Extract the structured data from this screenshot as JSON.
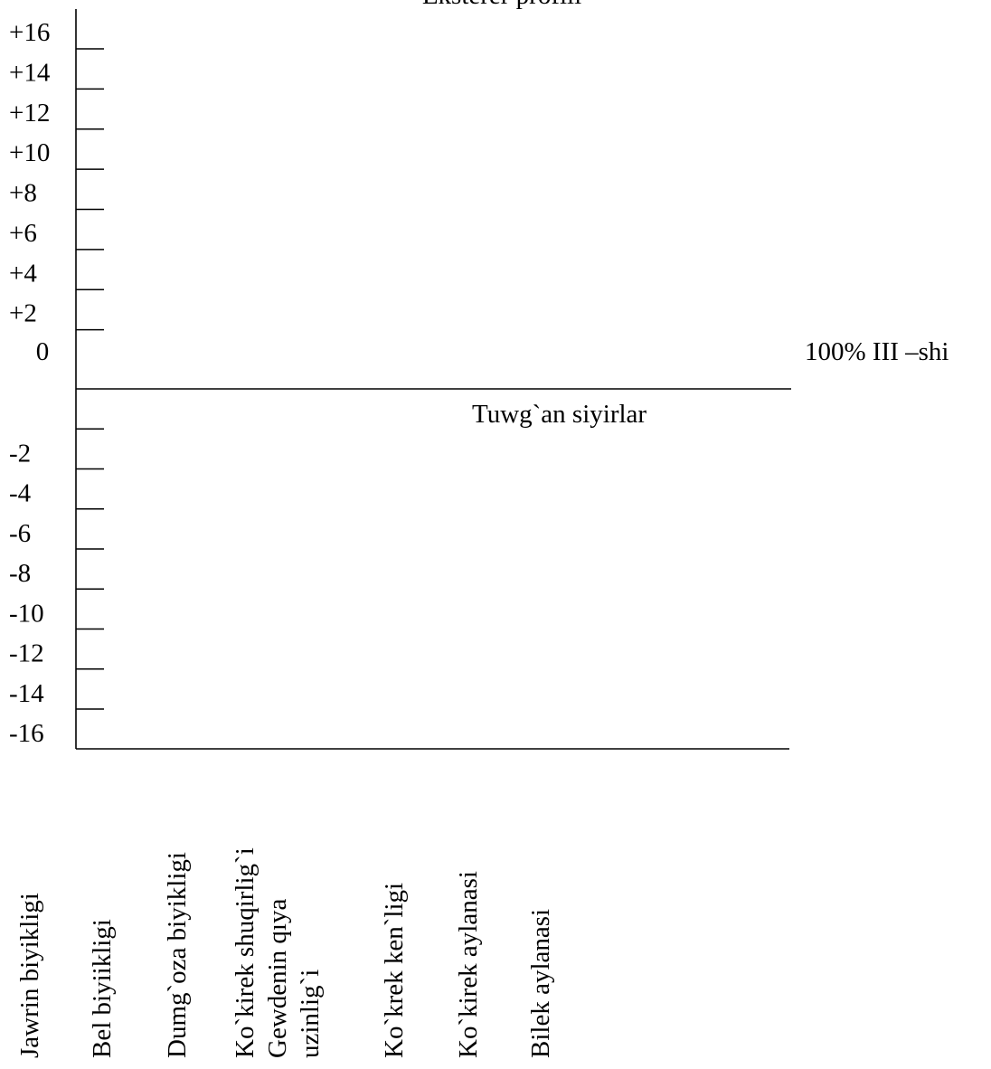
{
  "chart_data": {
    "type": "profile",
    "title": "Eksterer  profili",
    "ylim": [
      -16,
      16
    ],
    "yticks": [
      {
        "value": 16,
        "label": "+16"
      },
      {
        "value": 14,
        "label": "+14"
      },
      {
        "value": 12,
        "label": "+12"
      },
      {
        "value": 10,
        "label": "+10"
      },
      {
        "value": 8,
        "label": "+8"
      },
      {
        "value": 6,
        "label": "+6"
      },
      {
        "value": 4,
        "label": "+4"
      },
      {
        "value": 2,
        "label": "+2"
      },
      0,
      -2,
      -4,
      -6,
      -8,
      -10,
      -12,
      -14,
      -16
    ],
    "categories": [
      [
        "Jawrin  biyikligi"
      ],
      [
        "Bel biyiikligi"
      ],
      [
        "Dumg`oza biyikligi"
      ],
      [
        "Ko`kirek shuqirlig`i",
        "Gewdenin  qıya",
        "uzinlig`i"
      ],
      [
        "Ko`krek ken`ligi"
      ],
      [
        "Ko`kirek aylanasi"
      ],
      [
        "Bilek aylanasi"
      ]
    ],
    "annotations": [
      "100% III –shi",
      "Tuwg`an   siyirlar"
    ]
  }
}
